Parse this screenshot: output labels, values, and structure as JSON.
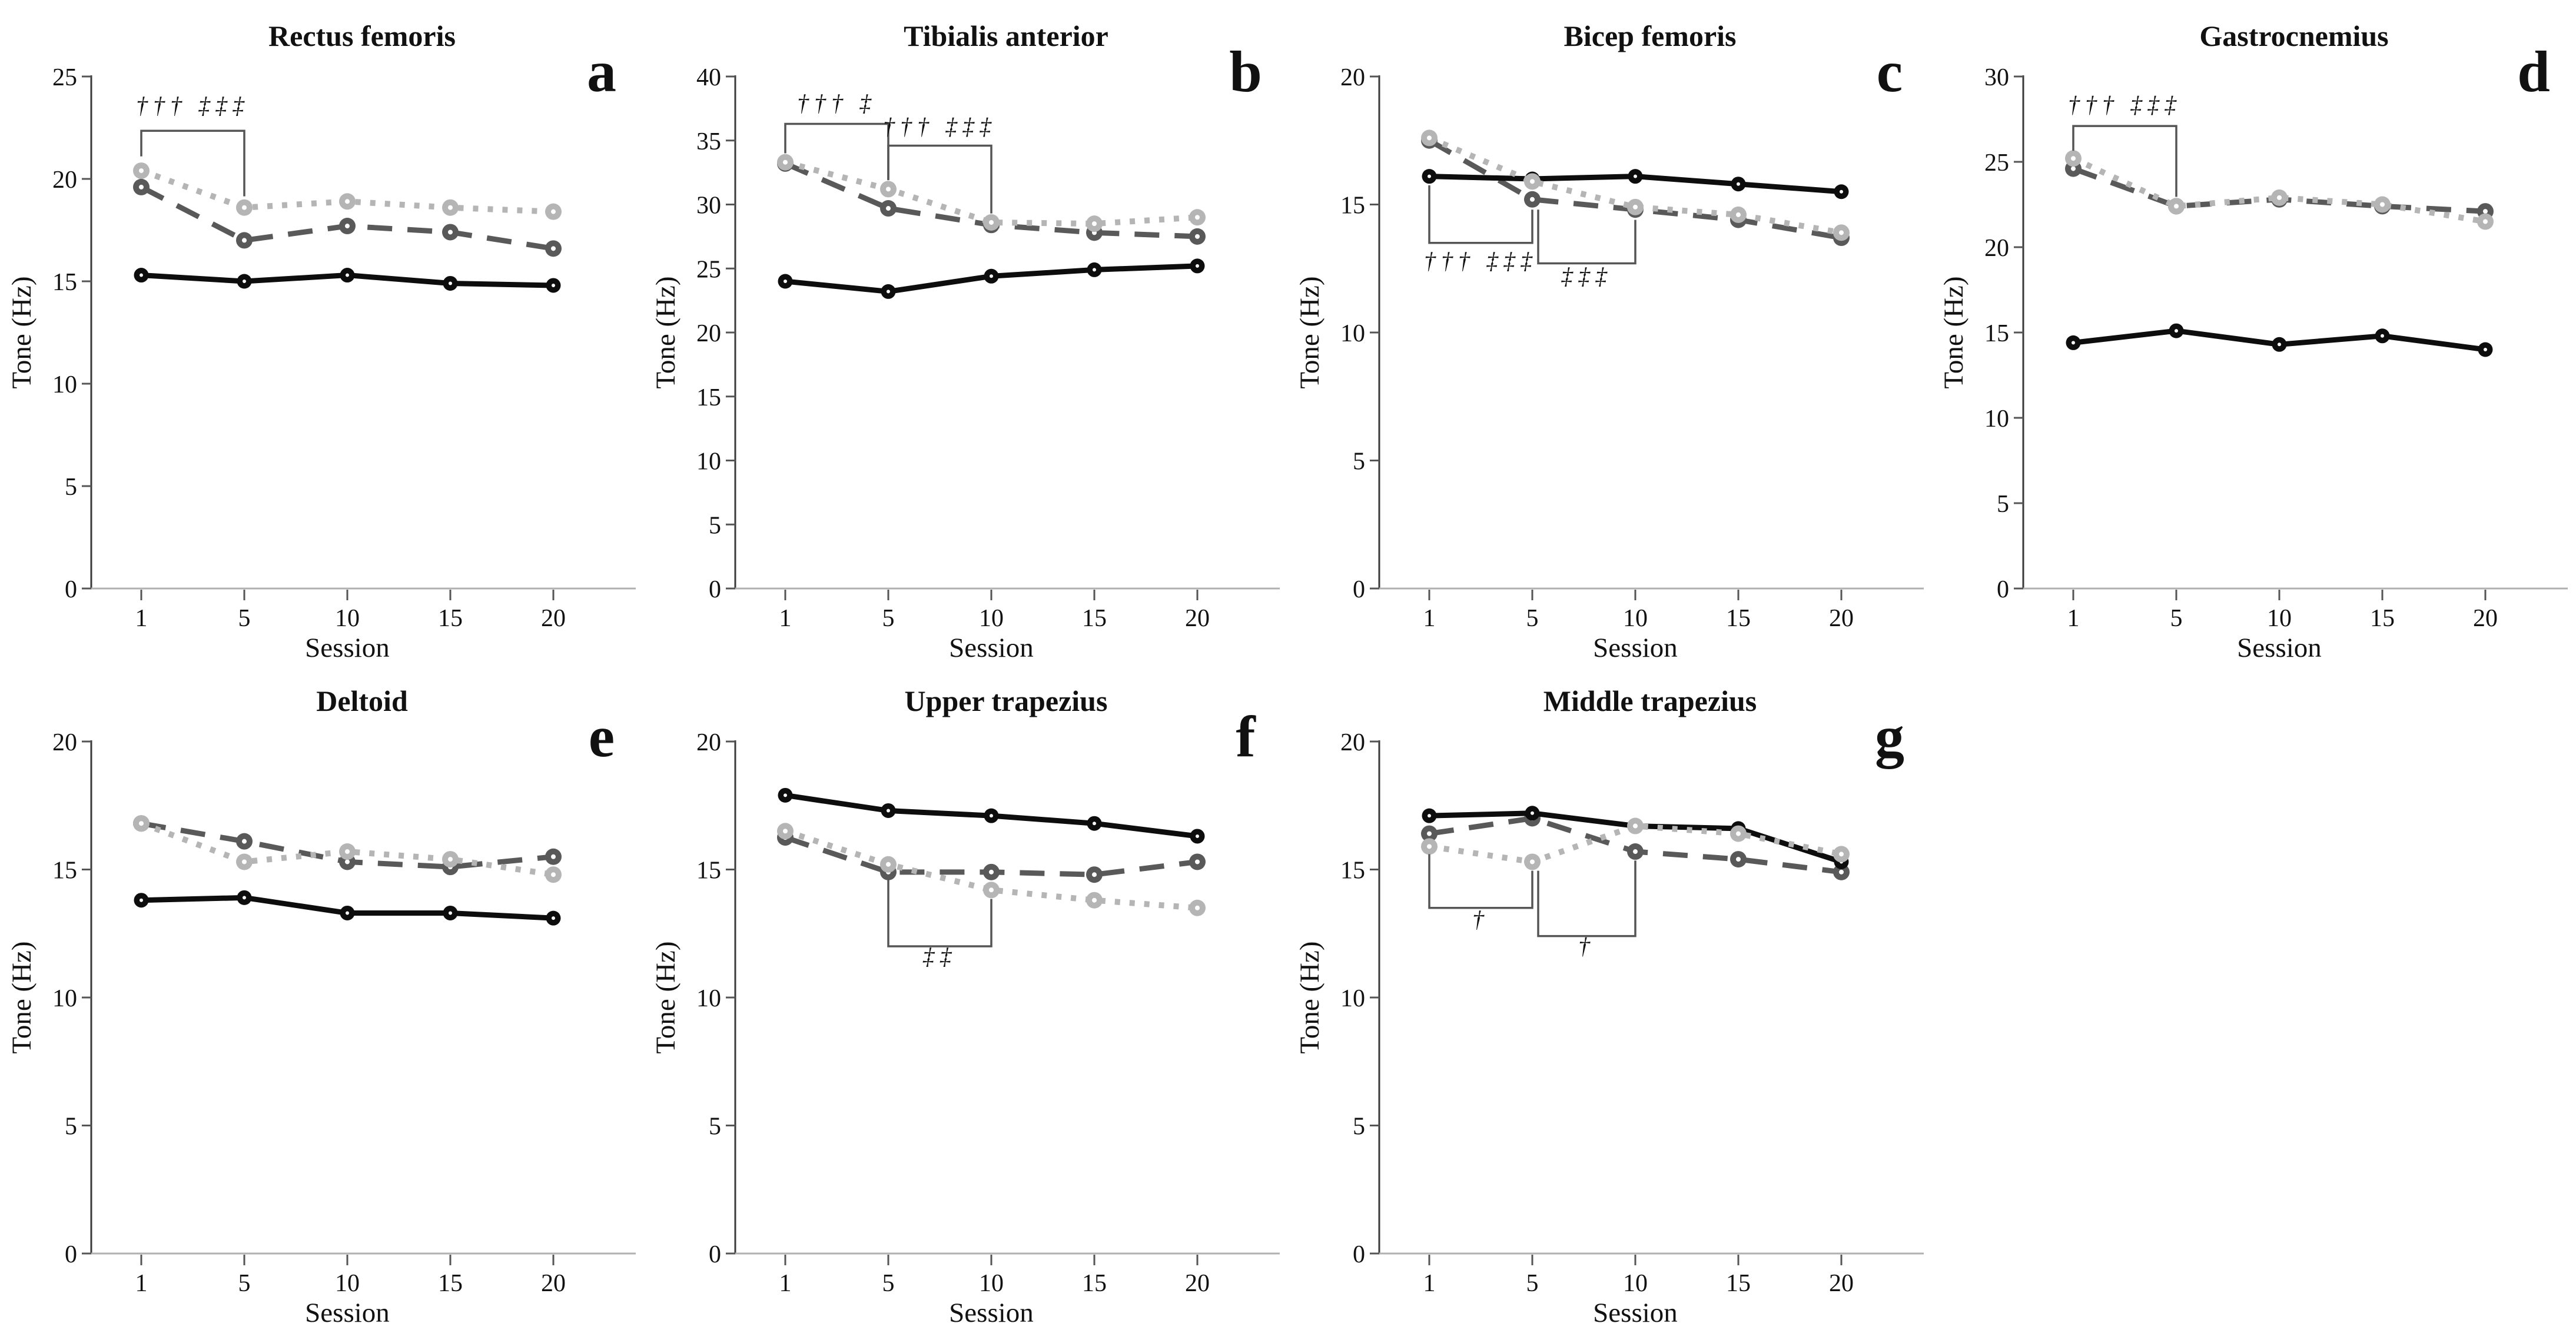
{
  "figure": {
    "background": "#ffffff",
    "xlabel": "Session",
    "ylabel": "Tone (Hz)",
    "x_categories": [
      1,
      5,
      10,
      15,
      20
    ],
    "colors": {
      "solid_black": "#0d0d0d",
      "dashed_dark_gray": "#595959",
      "dotted_light_gray": "#b5b5b5",
      "y_axis": "#3a3a3a",
      "x_axis": "#b0b0b0",
      "bracket": "#555555"
    }
  },
  "chart_data": [
    {
      "type": "line",
      "row": 0,
      "col": 0,
      "title": "Rectus femoris",
      "panel_letter": "a",
      "xlabel": "Session",
      "ylabel": "Tone (Hz)",
      "x": [
        1,
        5,
        10,
        15,
        20
      ],
      "ylim": [
        0,
        25
      ],
      "yticks": [
        0,
        5,
        10,
        15,
        20,
        25
      ],
      "grid": false,
      "legend": "none",
      "series": [
        {
          "name": "dark-gray-dashed",
          "style": "dashed",
          "color": "#595959",
          "values": [
            19.6,
            17.0,
            17.7,
            17.4,
            16.6
          ]
        },
        {
          "name": "black-solid",
          "style": "solid",
          "color": "#0d0d0d",
          "values": [
            15.3,
            15.0,
            15.3,
            14.9,
            14.8
          ]
        },
        {
          "name": "light-gray-dotted",
          "style": "dotted",
          "color": "#b5b5b5",
          "values": [
            20.4,
            18.6,
            18.9,
            18.6,
            18.4
          ]
        }
      ],
      "annotations": [
        {
          "x1": 1,
          "x2": 5,
          "side": "above",
          "bar_y": 22.35,
          "leg1_y": 21.1,
          "leg2_y": 19.15,
          "label": "††† ‡‡‡",
          "label_y": 23.2
        }
      ]
    },
    {
      "type": "line",
      "row": 0,
      "col": 1,
      "title": "Tibialis anterior",
      "panel_letter": "b",
      "xlabel": "Session",
      "ylabel": "Tone (Hz)",
      "x": [
        1,
        5,
        10,
        15,
        20
      ],
      "ylim": [
        0,
        40
      ],
      "yticks": [
        0,
        5,
        10,
        15,
        20,
        25,
        30,
        35,
        40
      ],
      "grid": false,
      "legend": "none",
      "series": [
        {
          "name": "dark-gray-dashed",
          "style": "dashed",
          "color": "#595959",
          "values": [
            33.2,
            29.7,
            28.4,
            27.8,
            27.5
          ]
        },
        {
          "name": "black-solid",
          "style": "solid",
          "color": "#0d0d0d",
          "values": [
            24.0,
            23.2,
            24.4,
            24.9,
            25.2
          ]
        },
        {
          "name": "light-gray-dotted",
          "style": "dotted",
          "color": "#b5b5b5",
          "values": [
            33.3,
            31.2,
            28.6,
            28.5,
            29.0
          ]
        }
      ],
      "annotations": [
        {
          "x1": 1,
          "x2": 5,
          "side": "above",
          "bar_y": 36.3,
          "leg1_y": 34.0,
          "leg2_y": 31.9,
          "label": "††† ‡",
          "label_y": 37.3
        },
        {
          "x1": 5,
          "x2": 10,
          "side": "above",
          "bar_y": 34.6,
          "leg1_y": 31.9,
          "leg2_y": 29.3,
          "label": "††† ‡‡‡",
          "label_y": 35.5
        }
      ]
    },
    {
      "type": "line",
      "row": 0,
      "col": 2,
      "title": "Bicep femoris",
      "panel_letter": "c",
      "xlabel": "Session",
      "ylabel": "Tone (Hz)",
      "x": [
        1,
        5,
        10,
        15,
        20
      ],
      "ylim": [
        0,
        20
      ],
      "yticks": [
        0,
        5,
        10,
        15,
        20
      ],
      "grid": false,
      "legend": "none",
      "series": [
        {
          "name": "dark-gray-dashed",
          "style": "dashed",
          "color": "#595959",
          "values": [
            17.5,
            15.2,
            14.8,
            14.4,
            13.7
          ]
        },
        {
          "name": "black-solid",
          "style": "solid",
          "color": "#0d0d0d",
          "values": [
            16.1,
            16.0,
            16.1,
            15.8,
            15.5
          ]
        },
        {
          "name": "light-gray-dotted",
          "style": "dotted",
          "color": "#b5b5b5",
          "values": [
            17.6,
            15.9,
            14.9,
            14.6,
            13.9
          ]
        }
      ],
      "annotations": [
        {
          "x1": 1,
          "x2": 5,
          "side": "below",
          "bar_y": 13.5,
          "leg1_y": 15.75,
          "leg2_y": 14.8,
          "label": "††† ‡‡‡",
          "label_y": 12.5
        },
        {
          "x1": 5,
          "x2": 10,
          "side": "below",
          "bar_y": 12.7,
          "leg1_y": 14.8,
          "leg2_y": 14.4,
          "label": "‡‡‡",
          "label_y": 11.9,
          "x1_offset": 10
        }
      ]
    },
    {
      "type": "line",
      "row": 0,
      "col": 3,
      "title": "Gastrocnemius",
      "panel_letter": "d",
      "xlabel": "Session",
      "ylabel": "Tone (Hz)",
      "x": [
        1,
        5,
        10,
        15,
        20
      ],
      "ylim": [
        0,
        30
      ],
      "yticks": [
        0,
        5,
        10,
        15,
        20,
        25,
        30
      ],
      "grid": false,
      "legend": "none",
      "series": [
        {
          "name": "dark-gray-dashed",
          "style": "dashed",
          "color": "#595959",
          "values": [
            24.6,
            22.4,
            22.8,
            22.4,
            22.1
          ]
        },
        {
          "name": "black-solid",
          "style": "solid",
          "color": "#0d0d0d",
          "values": [
            14.4,
            15.1,
            14.3,
            14.8,
            14.0
          ]
        },
        {
          "name": "light-gray-dotted",
          "style": "dotted",
          "color": "#b5b5b5",
          "values": [
            25.2,
            22.4,
            22.9,
            22.5,
            21.5
          ]
        }
      ],
      "annotations": [
        {
          "x1": 1,
          "x2": 5,
          "side": "above",
          "bar_y": 27.1,
          "leg1_y": 25.65,
          "leg2_y": 22.95,
          "label": "††† ‡‡‡",
          "label_y": 27.9
        }
      ]
    },
    {
      "type": "line",
      "row": 1,
      "col": 0,
      "title": "Deltoid",
      "panel_letter": "e",
      "xlabel": "Session",
      "ylabel": "Tone (Hz)",
      "x": [
        1,
        5,
        10,
        15,
        20
      ],
      "ylim": [
        0,
        20
      ],
      "yticks": [
        0,
        5,
        10,
        15,
        20
      ],
      "grid": false,
      "legend": "none",
      "series": [
        {
          "name": "dark-gray-dashed",
          "style": "dashed",
          "color": "#595959",
          "values": [
            16.8,
            16.1,
            15.3,
            15.1,
            15.5
          ]
        },
        {
          "name": "black-solid",
          "style": "solid",
          "color": "#0d0d0d",
          "values": [
            13.8,
            13.9,
            13.3,
            13.3,
            13.1
          ]
        },
        {
          "name": "light-gray-dotted",
          "style": "dotted",
          "color": "#b5b5b5",
          "values": [
            16.8,
            15.3,
            15.7,
            15.4,
            14.8
          ]
        }
      ],
      "annotations": []
    },
    {
      "type": "line",
      "row": 1,
      "col": 1,
      "title": "Upper trapezius",
      "panel_letter": "f",
      "xlabel": "Session",
      "ylabel": "Tone (Hz)",
      "x": [
        1,
        5,
        10,
        15,
        20
      ],
      "ylim": [
        0,
        20
      ],
      "yticks": [
        0,
        5,
        10,
        15,
        20
      ],
      "grid": false,
      "legend": "none",
      "series": [
        {
          "name": "dark-gray-dashed",
          "style": "dashed",
          "color": "#595959",
          "values": [
            16.25,
            14.9,
            14.9,
            14.8,
            15.3
          ]
        },
        {
          "name": "black-solid",
          "style": "solid",
          "color": "#0d0d0d",
          "values": [
            17.9,
            17.3,
            17.1,
            16.8,
            16.3
          ]
        },
        {
          "name": "light-gray-dotted",
          "style": "dotted",
          "color": "#b5b5b5",
          "values": [
            16.5,
            15.2,
            14.2,
            13.8,
            13.5
          ]
        }
      ],
      "annotations": [
        {
          "x1": 5,
          "x2": 10,
          "side": "below",
          "bar_y": 12.0,
          "leg1_y": 14.6,
          "leg2_y": 13.85,
          "label": "‡‡",
          "label_y": 11.3
        }
      ]
    },
    {
      "type": "line",
      "row": 1,
      "col": 2,
      "title": "Middle trapezius",
      "panel_letter": "g",
      "xlabel": "Session",
      "ylabel": "Tone (Hz)",
      "x": [
        1,
        5,
        10,
        15,
        20
      ],
      "ylim": [
        0,
        20
      ],
      "yticks": [
        0,
        5,
        10,
        15,
        20
      ],
      "grid": false,
      "legend": "none",
      "series": [
        {
          "name": "dark-gray-dashed",
          "style": "dashed",
          "color": "#595959",
          "values": [
            16.4,
            17.0,
            15.7,
            15.4,
            14.9
          ]
        },
        {
          "name": "black-solid",
          "style": "solid",
          "color": "#0d0d0d",
          "values": [
            17.1,
            17.2,
            16.7,
            16.6,
            15.3
          ]
        },
        {
          "name": "light-gray-dotted",
          "style": "dotted",
          "color": "#b5b5b5",
          "values": [
            15.9,
            15.3,
            16.7,
            16.4,
            15.6
          ]
        }
      ],
      "annotations": [
        {
          "x1": 1,
          "x2": 5,
          "side": "below",
          "bar_y": 13.5,
          "leg1_y": 15.6,
          "leg2_y": 14.95,
          "label": "†",
          "label_y": 12.75
        },
        {
          "x1": 5,
          "x2": 10,
          "side": "below",
          "bar_y": 12.4,
          "leg1_y": 14.95,
          "leg2_y": 15.35,
          "label": "†",
          "label_y": 11.7,
          "x1_offset": 10
        }
      ]
    }
  ]
}
